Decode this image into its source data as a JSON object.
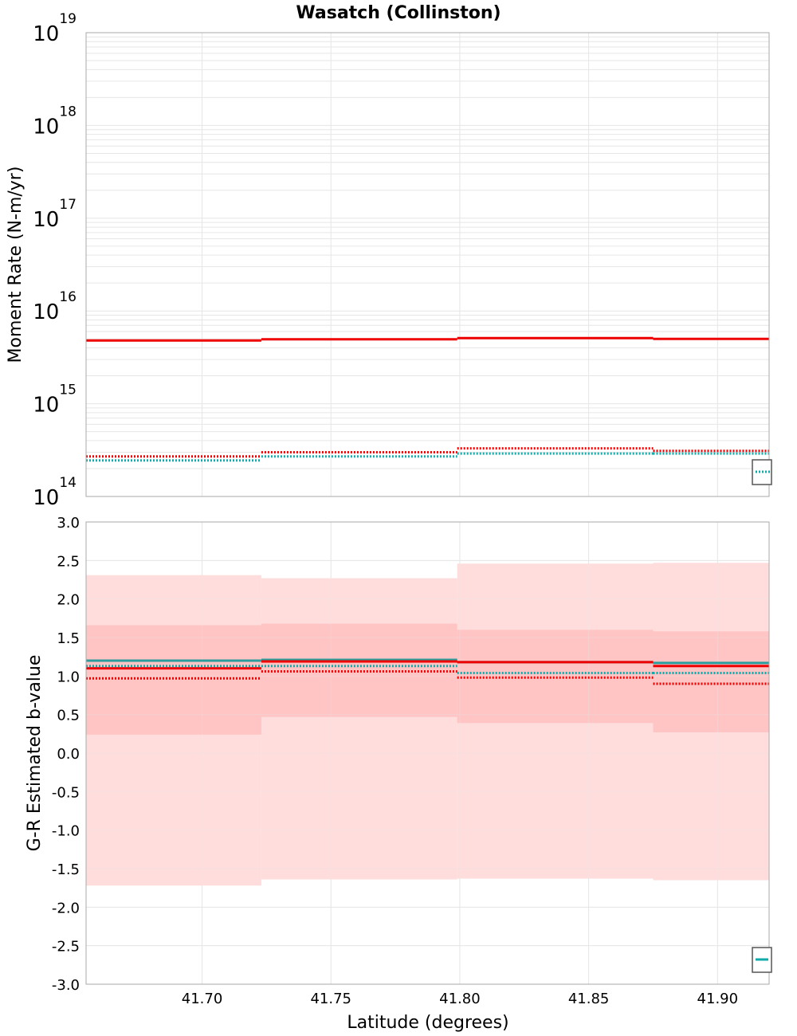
{
  "title": "Wasatch (Collinston)",
  "xlabel": "Latitude (degrees)",
  "x_ticks": [
    "41.70",
    "41.75",
    "41.80",
    "41.85",
    "41.90"
  ],
  "colors": {
    "red": "#ee0000",
    "teal": "#11aaaa",
    "shade_outer": "#ffdddd",
    "shade_inner": "#ffc4c4",
    "grid": "#e6e6e6",
    "frame": "#aaaaaa"
  },
  "chart_data": [
    {
      "type": "line",
      "id": "moment",
      "ylabel": "Moment Rate (N-m/yr)",
      "yscale": "log",
      "ylim": [
        100000000000000.0,
        1e+19
      ],
      "y_ticks": [
        {
          "base": "10",
          "exp": "14",
          "value": 100000000000000.0
        },
        {
          "base": "10",
          "exp": "15",
          "value": 1000000000000000.0
        },
        {
          "base": "10",
          "exp": "16",
          "value": 1e+16
        },
        {
          "base": "10",
          "exp": "17",
          "value": 1e+17
        },
        {
          "base": "10",
          "exp": "18",
          "value": 1e+18
        },
        {
          "base": "10",
          "exp": "19",
          "value": 1e+19
        }
      ],
      "xlim": [
        41.655,
        41.92
      ],
      "bins": [
        [
          41.655,
          41.723
        ],
        [
          41.723,
          41.799
        ],
        [
          41.799,
          41.875
        ],
        [
          41.875,
          41.92
        ]
      ],
      "series": [
        {
          "name": "moment-rate-solid-red",
          "color": "#ee0000",
          "style": "solid",
          "values": [
            4800000000000000.0,
            4950000000000000.0,
            5100000000000000.0,
            5000000000000000.0
          ]
        },
        {
          "name": "moment-rate-dotted-red",
          "color": "#ee0000",
          "style": "dotted",
          "values": [
            270000000000000.0,
            300000000000000.0,
            330000000000000.0,
            310000000000000.0
          ]
        },
        {
          "name": "moment-rate-dotted-teal",
          "color": "#11aaaa",
          "style": "dotted",
          "values": [
            245000000000000.0,
            270000000000000.0,
            290000000000000.0,
            290000000000000.0
          ]
        }
      ]
    },
    {
      "type": "line",
      "id": "bvalue",
      "ylabel": "G-R Estimated b-value",
      "yscale": "linear",
      "ylim": [
        -3.0,
        3.0
      ],
      "y_ticks": [
        "3.0",
        "2.5",
        "2.0",
        "1.5",
        "1.0",
        "0.5",
        "0.0",
        "-0.5",
        "-1.0",
        "-1.5",
        "-2.0",
        "-2.5",
        "-3.0"
      ],
      "xlim": [
        41.655,
        41.92
      ],
      "bins": [
        [
          41.655,
          41.723
        ],
        [
          41.723,
          41.799
        ],
        [
          41.799,
          41.875
        ],
        [
          41.875,
          41.92
        ]
      ],
      "bands": [
        {
          "name": "outer-confidence-band",
          "color": "#ffdddd",
          "lower": [
            -1.72,
            -1.64,
            -1.63,
            -1.65
          ],
          "upper": [
            2.31,
            2.27,
            2.46,
            2.47
          ]
        },
        {
          "name": "inner-confidence-band",
          "color": "#ffc4c4",
          "lower": [
            0.24,
            0.47,
            0.39,
            0.27
          ],
          "upper": [
            1.66,
            1.68,
            1.6,
            1.58
          ]
        }
      ],
      "series": [
        {
          "name": "b-value-solid-teal",
          "color": "#2a9d9d",
          "style": "solid",
          "values": [
            1.2,
            1.21,
            1.18,
            1.17
          ]
        },
        {
          "name": "b-value-solid-red",
          "color": "#ee0000",
          "style": "solid",
          "values": [
            1.1,
            1.19,
            1.18,
            1.13
          ]
        },
        {
          "name": "b-value-dotted-teal",
          "color": "#11aaaa",
          "style": "dotted",
          "values": [
            1.13,
            1.13,
            1.04,
            1.04
          ]
        },
        {
          "name": "b-value-dotted-red",
          "color": "#ee0000",
          "style": "dotted",
          "values": [
            0.97,
            1.06,
            0.98,
            0.9
          ]
        }
      ]
    }
  ]
}
